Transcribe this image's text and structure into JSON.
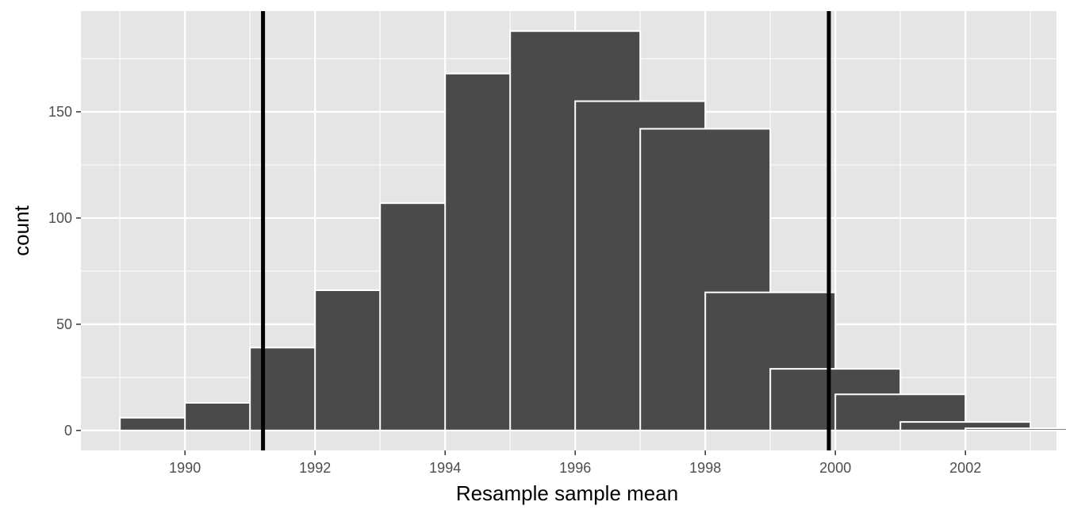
{
  "chart_data": {
    "type": "bar",
    "subtype": "histogram",
    "xlabel": "Resample sample mean",
    "ylabel": "count",
    "xlim": [
      1988.4,
      2003.4
    ],
    "ylim": [
      -9.4,
      197.4
    ],
    "x_ticks": [
      1990,
      1992,
      1994,
      1996,
      1998,
      2000,
      2002
    ],
    "x_tick_labels": [
      "1990",
      "1992",
      "1994",
      "1996",
      "1998",
      "2000",
      "2002"
    ],
    "x_minor_ticks": [
      1989,
      1991,
      1993,
      1995,
      1997,
      1999,
      2001,
      2003
    ],
    "y_ticks": [
      0,
      50,
      100,
      150
    ],
    "y_tick_labels": [
      "0",
      "50",
      "100",
      "150"
    ],
    "y_minor_ticks": [
      25,
      75,
      125,
      175
    ],
    "bin_width": 2,
    "bins": [
      {
        "x_start": 1989,
        "x_end": 1991,
        "count": 6
      },
      {
        "x_start": 1990,
        "x_end": 1992,
        "count": 13
      },
      {
        "x_start": 1991,
        "x_end": 1993,
        "count": 39
      },
      {
        "x_start": 1992,
        "x_end": 1994,
        "count": 66
      },
      {
        "x_start": 1993,
        "x_end": 1995,
        "count": 107
      },
      {
        "x_start": 1994,
        "x_end": 1996,
        "count": 168
      },
      {
        "x_start": 1995,
        "x_end": 1997,
        "count": 188
      },
      {
        "x_start": 1996,
        "x_end": 1998,
        "count": 155
      },
      {
        "x_start": 1997,
        "x_end": 1999,
        "count": 142
      },
      {
        "x_start": 1998,
        "x_end": 2000,
        "count": 65
      },
      {
        "x_start": 1999,
        "x_end": 2001,
        "count": 29
      },
      {
        "x_start": 2000,
        "x_end": 2002,
        "count": 17
      },
      {
        "x_start": 2001,
        "x_end": 2003,
        "count": 4
      },
      {
        "x_start": 2002,
        "x_end": 2004,
        "count": 1
      }
    ],
    "vertical_lines": [
      {
        "x": 1991.2
      },
      {
        "x": 1999.9
      }
    ],
    "grid": true,
    "legend": "none",
    "colors": {
      "panel_background": "#e5e5e5",
      "grid": "#ffffff",
      "bar_fill": "#4a4a4a",
      "bar_outline": "#ffffff",
      "vline": "#000000"
    }
  }
}
